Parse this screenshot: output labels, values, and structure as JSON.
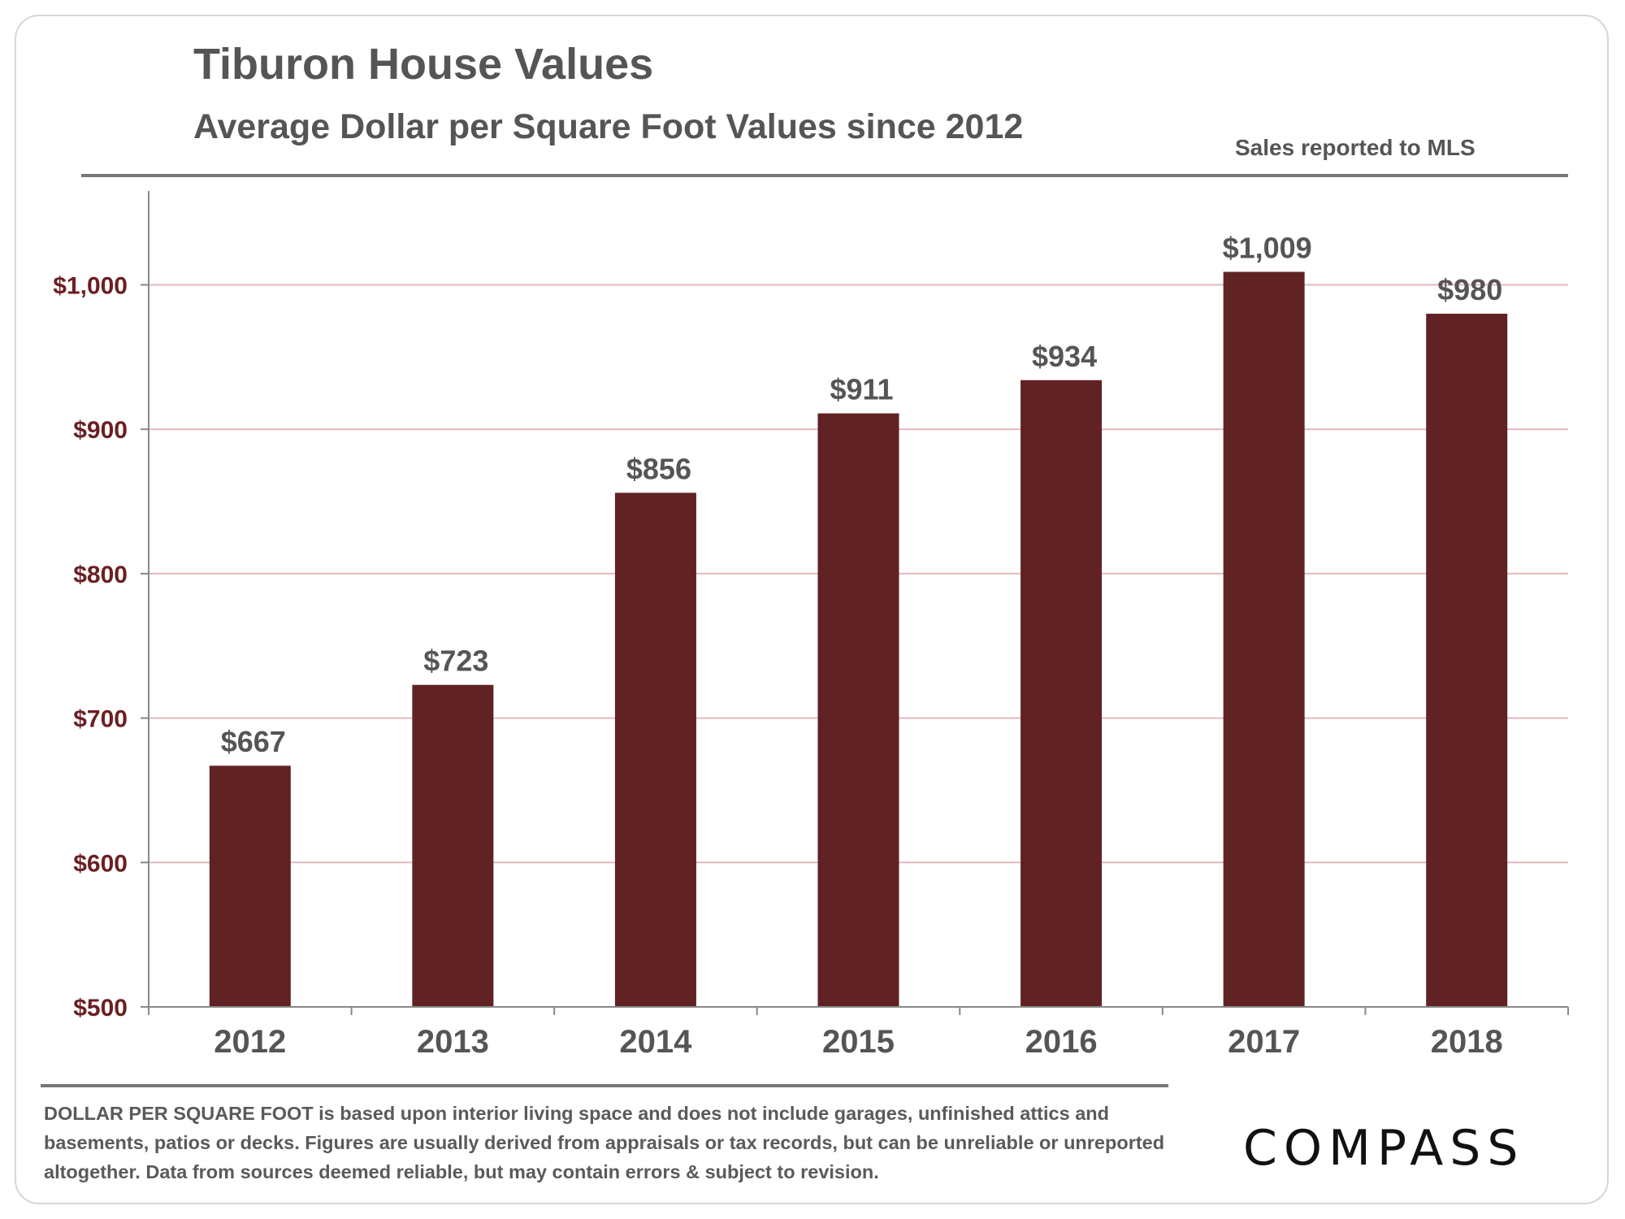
{
  "header": {
    "title": "Tiburon House Values",
    "subtitle": "Average Dollar per Square Foot Values since 2012",
    "source_note": "Sales reported to MLS"
  },
  "footnote": {
    "lead": "DOLLAR PER SQUARE FOOT",
    "text": " is based upon interior living space and does not include garages, unfinished attics and basements, patios or decks. Figures are usually derived from appraisals or tax records, but can be unreliable or unreported altogether. Data from sources deemed reliable, but may contain errors & subject to revision."
  },
  "brand": {
    "logo_text": "COMPASS"
  },
  "colors": {
    "bar": "#612224",
    "y_tick": "#6b1f22",
    "gridline": "#e3b9bc",
    "axis": "#888888",
    "text": "#555555"
  },
  "chart_data": {
    "type": "bar",
    "title": "Tiburon House Values",
    "subtitle": "Average Dollar per Square Foot Values since 2012",
    "xlabel": "",
    "ylabel": "",
    "categories": [
      "2012",
      "2013",
      "2014",
      "2015",
      "2016",
      "2017",
      "2018"
    ],
    "values": [
      667,
      723,
      856,
      911,
      934,
      1009,
      980
    ],
    "data_labels": [
      "$667",
      "$723",
      "$856",
      "$911",
      "$934",
      "$1,009",
      "$980"
    ],
    "ylim": [
      500,
      1065
    ],
    "y_ticks": [
      500,
      600,
      700,
      800,
      900,
      1000
    ],
    "y_tick_labels": [
      "$500",
      "$600",
      "$700",
      "$800",
      "$900",
      "$1,000"
    ],
    "grid": true,
    "legend": "none"
  }
}
